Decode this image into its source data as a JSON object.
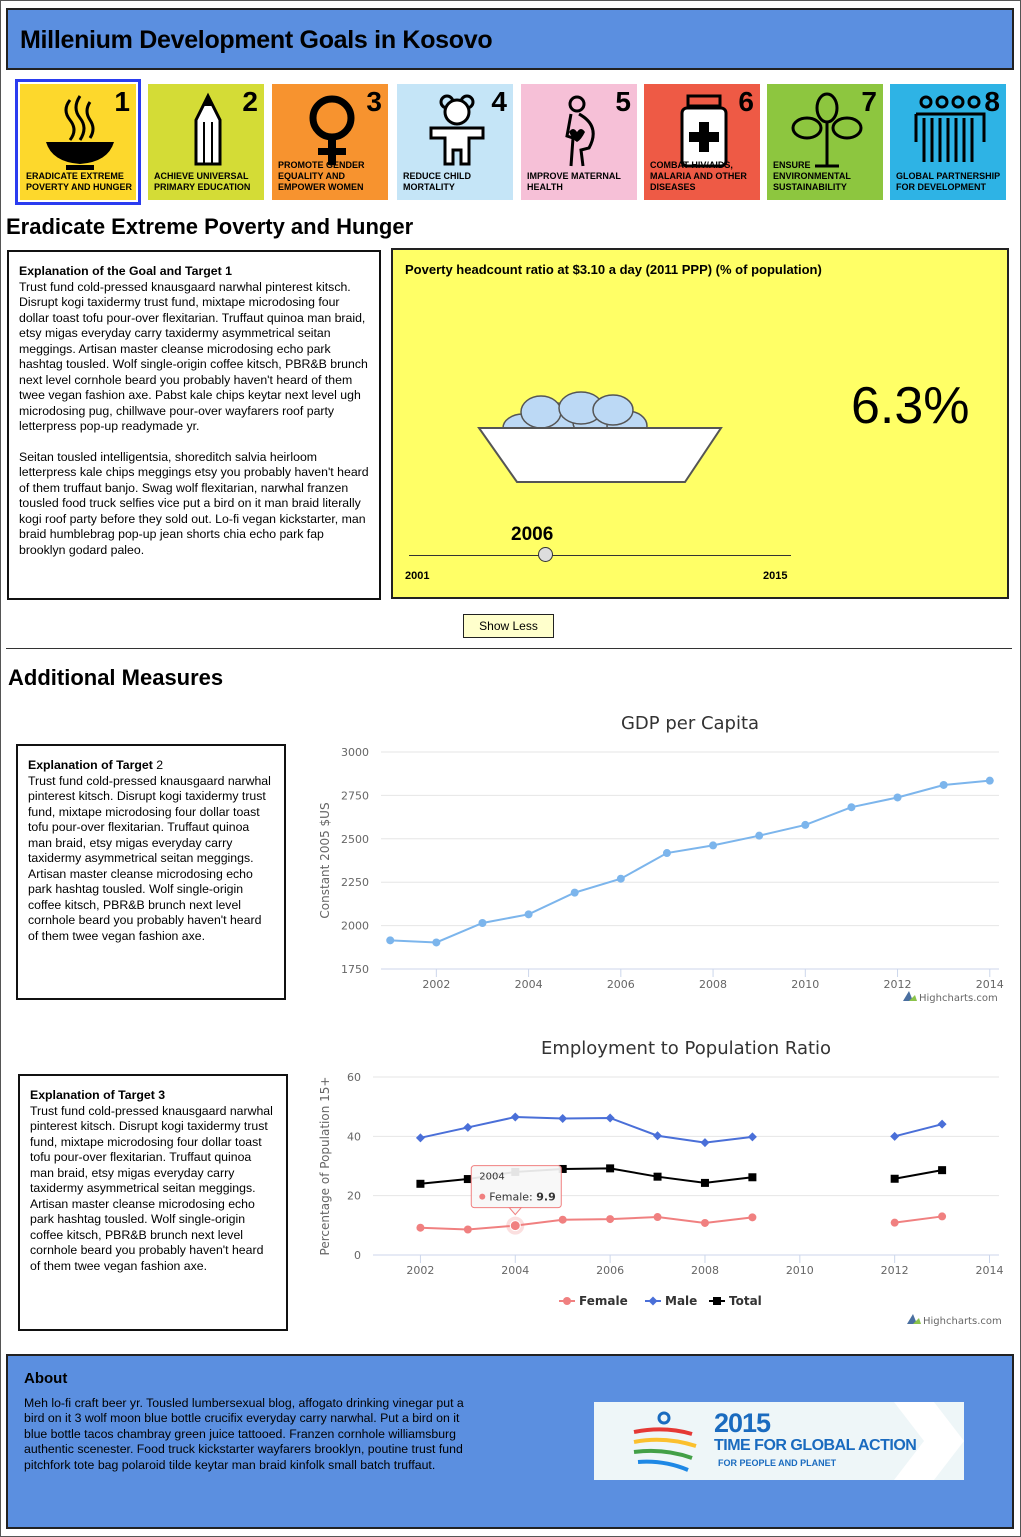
{
  "header": {
    "title": "Millenium Development Goals in Kosovo"
  },
  "goals": [
    {
      "num": "1",
      "caption": "ERADICATE EXTREME POVERTY AND HUNGER",
      "color": "#fdd82c",
      "icon": "bowl-icon"
    },
    {
      "num": "2",
      "caption": "ACHIEVE UNIVERSAL PRIMARY EDUCATION",
      "color": "#d4dc36",
      "icon": "pencil-icon"
    },
    {
      "num": "3",
      "caption": "PROMOTE GENDER EQUALITY AND EMPOWER WOMEN",
      "color": "#f7932f",
      "icon": "female-symbol-icon"
    },
    {
      "num": "4",
      "caption": "REDUCE CHILD MORTALITY",
      "color": "#c5e5f7",
      "icon": "teddy-bear-icon"
    },
    {
      "num": "5",
      "caption": "IMPROVE MATERNAL HEALTH",
      "color": "#f6c0d7",
      "icon": "pregnant-woman-icon"
    },
    {
      "num": "6",
      "caption": "COMBAT HIV/AIDS, MALARIA AND OTHER DISEASES",
      "color": "#ee5a45",
      "icon": "medicine-jar-icon"
    },
    {
      "num": "7",
      "caption": "ENSURE ENVIRONMENTAL SUSTAINABILITY",
      "color": "#8dc63f",
      "icon": "plant-icon"
    },
    {
      "num": "8",
      "caption": "GLOBAL PARTNERSHIP FOR DEVELOPMENT",
      "color": "#2eb3e5",
      "icon": "people-group-icon"
    }
  ],
  "goal_section": {
    "title": "Eradicate Extreme Poverty and Hunger",
    "explanation_title": "Explanation of the Goal and Target 1",
    "paragraph1": "Trust fund cold-pressed knausgaard narwhal pinterest kitsch. Disrupt kogi taxidermy trust fund, mixtape microdosing four dollar toast tofu pour-over flexitarian. Truffaut quinoa man braid, etsy migas everyday carry taxidermy asymmetrical seitan meggings. Artisan master cleanse microdosing echo park hashtag tousled. Wolf single-origin coffee kitsch, PBR&B brunch next level cornhole beard you probably haven't heard of them twee vegan fashion axe. Pabst kale chips keytar next level ugh microdosing pug, chillwave pour-over wayfarers roof party letterpress pop-up readymade yr.",
    "paragraph2": "Seitan tousled intelligentsia, shoreditch salvia heirloom letterpress kale chips meggings etsy you probably haven't heard of them truffaut banjo. Swag wolf flexitarian, narwhal franzen tousled food truck selfies vice put a bird on it man braid literally kogi roof party before they sold out. Lo-fi vegan kickstarter, man braid humblebrag pop-up jean shorts chia echo park fap brooklyn godard paleo."
  },
  "poverty_panel": {
    "title": "Poverty headcount ratio at $3.10 a day (2011 PPP) (% of population)",
    "value": "6.3%",
    "selected_year": "2006",
    "min_year": "2001",
    "max_year": "2015",
    "slider_fraction": 0.357
  },
  "show_less_label": "Show Less",
  "additional": {
    "title": "Additional Measures",
    "target2_title": "Explanation of Target",
    "target2_num": "2",
    "target2_text": "Trust fund cold-pressed knausgaard narwhal pinterest kitsch. Disrupt kogi taxidermy trust fund, mixtape microdosing four dollar toast tofu pour-over flexitarian. Truffaut quinoa man braid, etsy migas everyday carry taxidermy asymmetrical seitan meggings. Artisan master cleanse microdosing echo park hashtag tousled. Wolf single-origin coffee kitsch, PBR&B brunch next level cornhole beard you probably haven't heard of them twee vegan fashion axe.",
    "target3_title": "Explanation of Target 3",
    "target3_text": "Trust fund cold-pressed knausgaard narwhal pinterest kitsch. Disrupt kogi taxidermy trust fund, mixtape microdosing four dollar toast tofu pour-over flexitarian. Truffaut quinoa man braid, etsy migas everyday carry taxidermy asymmetrical seitan meggings. Artisan master cleanse microdosing echo park hashtag tousled. Wolf single-origin coffee kitsch, PBR&B brunch next level cornhole beard you probably haven't heard of them twee vegan fashion axe."
  },
  "chart_data": [
    {
      "type": "line",
      "title": "GDP per Capita",
      "ylabel": "Constant 2005 $US",
      "xlabel": "",
      "ylim": [
        1750,
        3000
      ],
      "yticks": [
        1750,
        2000,
        2250,
        2500,
        2750,
        3000
      ],
      "xlim": [
        2000.8,
        2014.2
      ],
      "xticks": [
        2002,
        2004,
        2006,
        2008,
        2010,
        2012,
        2014
      ],
      "x": [
        2001,
        2002,
        2003,
        2004,
        2005,
        2006,
        2007,
        2008,
        2009,
        2010,
        2011,
        2012,
        2013,
        2014
      ],
      "series": [
        {
          "color": "#7cb5ec",
          "values": [
            1915,
            1903,
            2015,
            2065,
            2190,
            2270,
            2418,
            2462,
            2518,
            2580,
            2682,
            2738,
            2810,
            2835
          ]
        }
      ],
      "credits": "Highcharts.com"
    },
    {
      "type": "line",
      "title": "Employment to Population Ratio",
      "ylabel": "Percentage of Population 15+",
      "xlabel": "",
      "ylim": [
        0,
        60
      ],
      "yticks": [
        0,
        20,
        40,
        60
      ],
      "xlim": [
        2001,
        2014.2
      ],
      "xticks": [
        2002,
        2004,
        2006,
        2008,
        2010,
        2012,
        2014
      ],
      "x": [
        2002,
        2003,
        2004,
        2005,
        2006,
        2007,
        2008,
        2009,
        2010,
        2011,
        2012,
        2013
      ],
      "series": [
        {
          "name": "Female",
          "color": "#f08080",
          "marker": "circle",
          "values": [
            9.2,
            8.6,
            9.9,
            11.9,
            12.1,
            12.8,
            10.8,
            12.7,
            null,
            null,
            10.9,
            13.0
          ]
        },
        {
          "name": "Male",
          "color": "#4a6fd8",
          "marker": "diamond",
          "values": [
            39.5,
            43.0,
            46.5,
            46.0,
            46.2,
            40.2,
            37.9,
            39.8,
            null,
            null,
            40.0,
            44.1
          ]
        },
        {
          "name": "Total",
          "color": "#000000",
          "marker": "square",
          "values": [
            24.0,
            25.6,
            28.0,
            29.0,
            29.2,
            26.4,
            24.3,
            26.2,
            null,
            null,
            25.7,
            28.6
          ]
        }
      ],
      "legend": "bottom",
      "tooltip": {
        "header": "2004",
        "label": "Female: ",
        "value": "9.9"
      },
      "credits": "Highcharts.com"
    }
  ],
  "about": {
    "title": "About",
    "text": "Meh lo-fi craft beer yr. Tousled lumbersexual blog, affogato drinking vinegar put a bird on it 3 wolf moon blue bottle crucifix everyday carry narwhal. Put a bird on it blue bottle tacos chambray green juice tattooed. Franzen cornhole williamsburg authentic scenester. Food truck kickstarter wayfarers brooklyn, poutine trust fund pitchfork tote bag polaroid tilde keytar man braid kinfolk small batch truffaut.",
    "badge_year": "2015",
    "badge_line1": "TIME FOR GLOBAL ACTION",
    "badge_line2": "FOR PEOPLE AND PLANET"
  }
}
